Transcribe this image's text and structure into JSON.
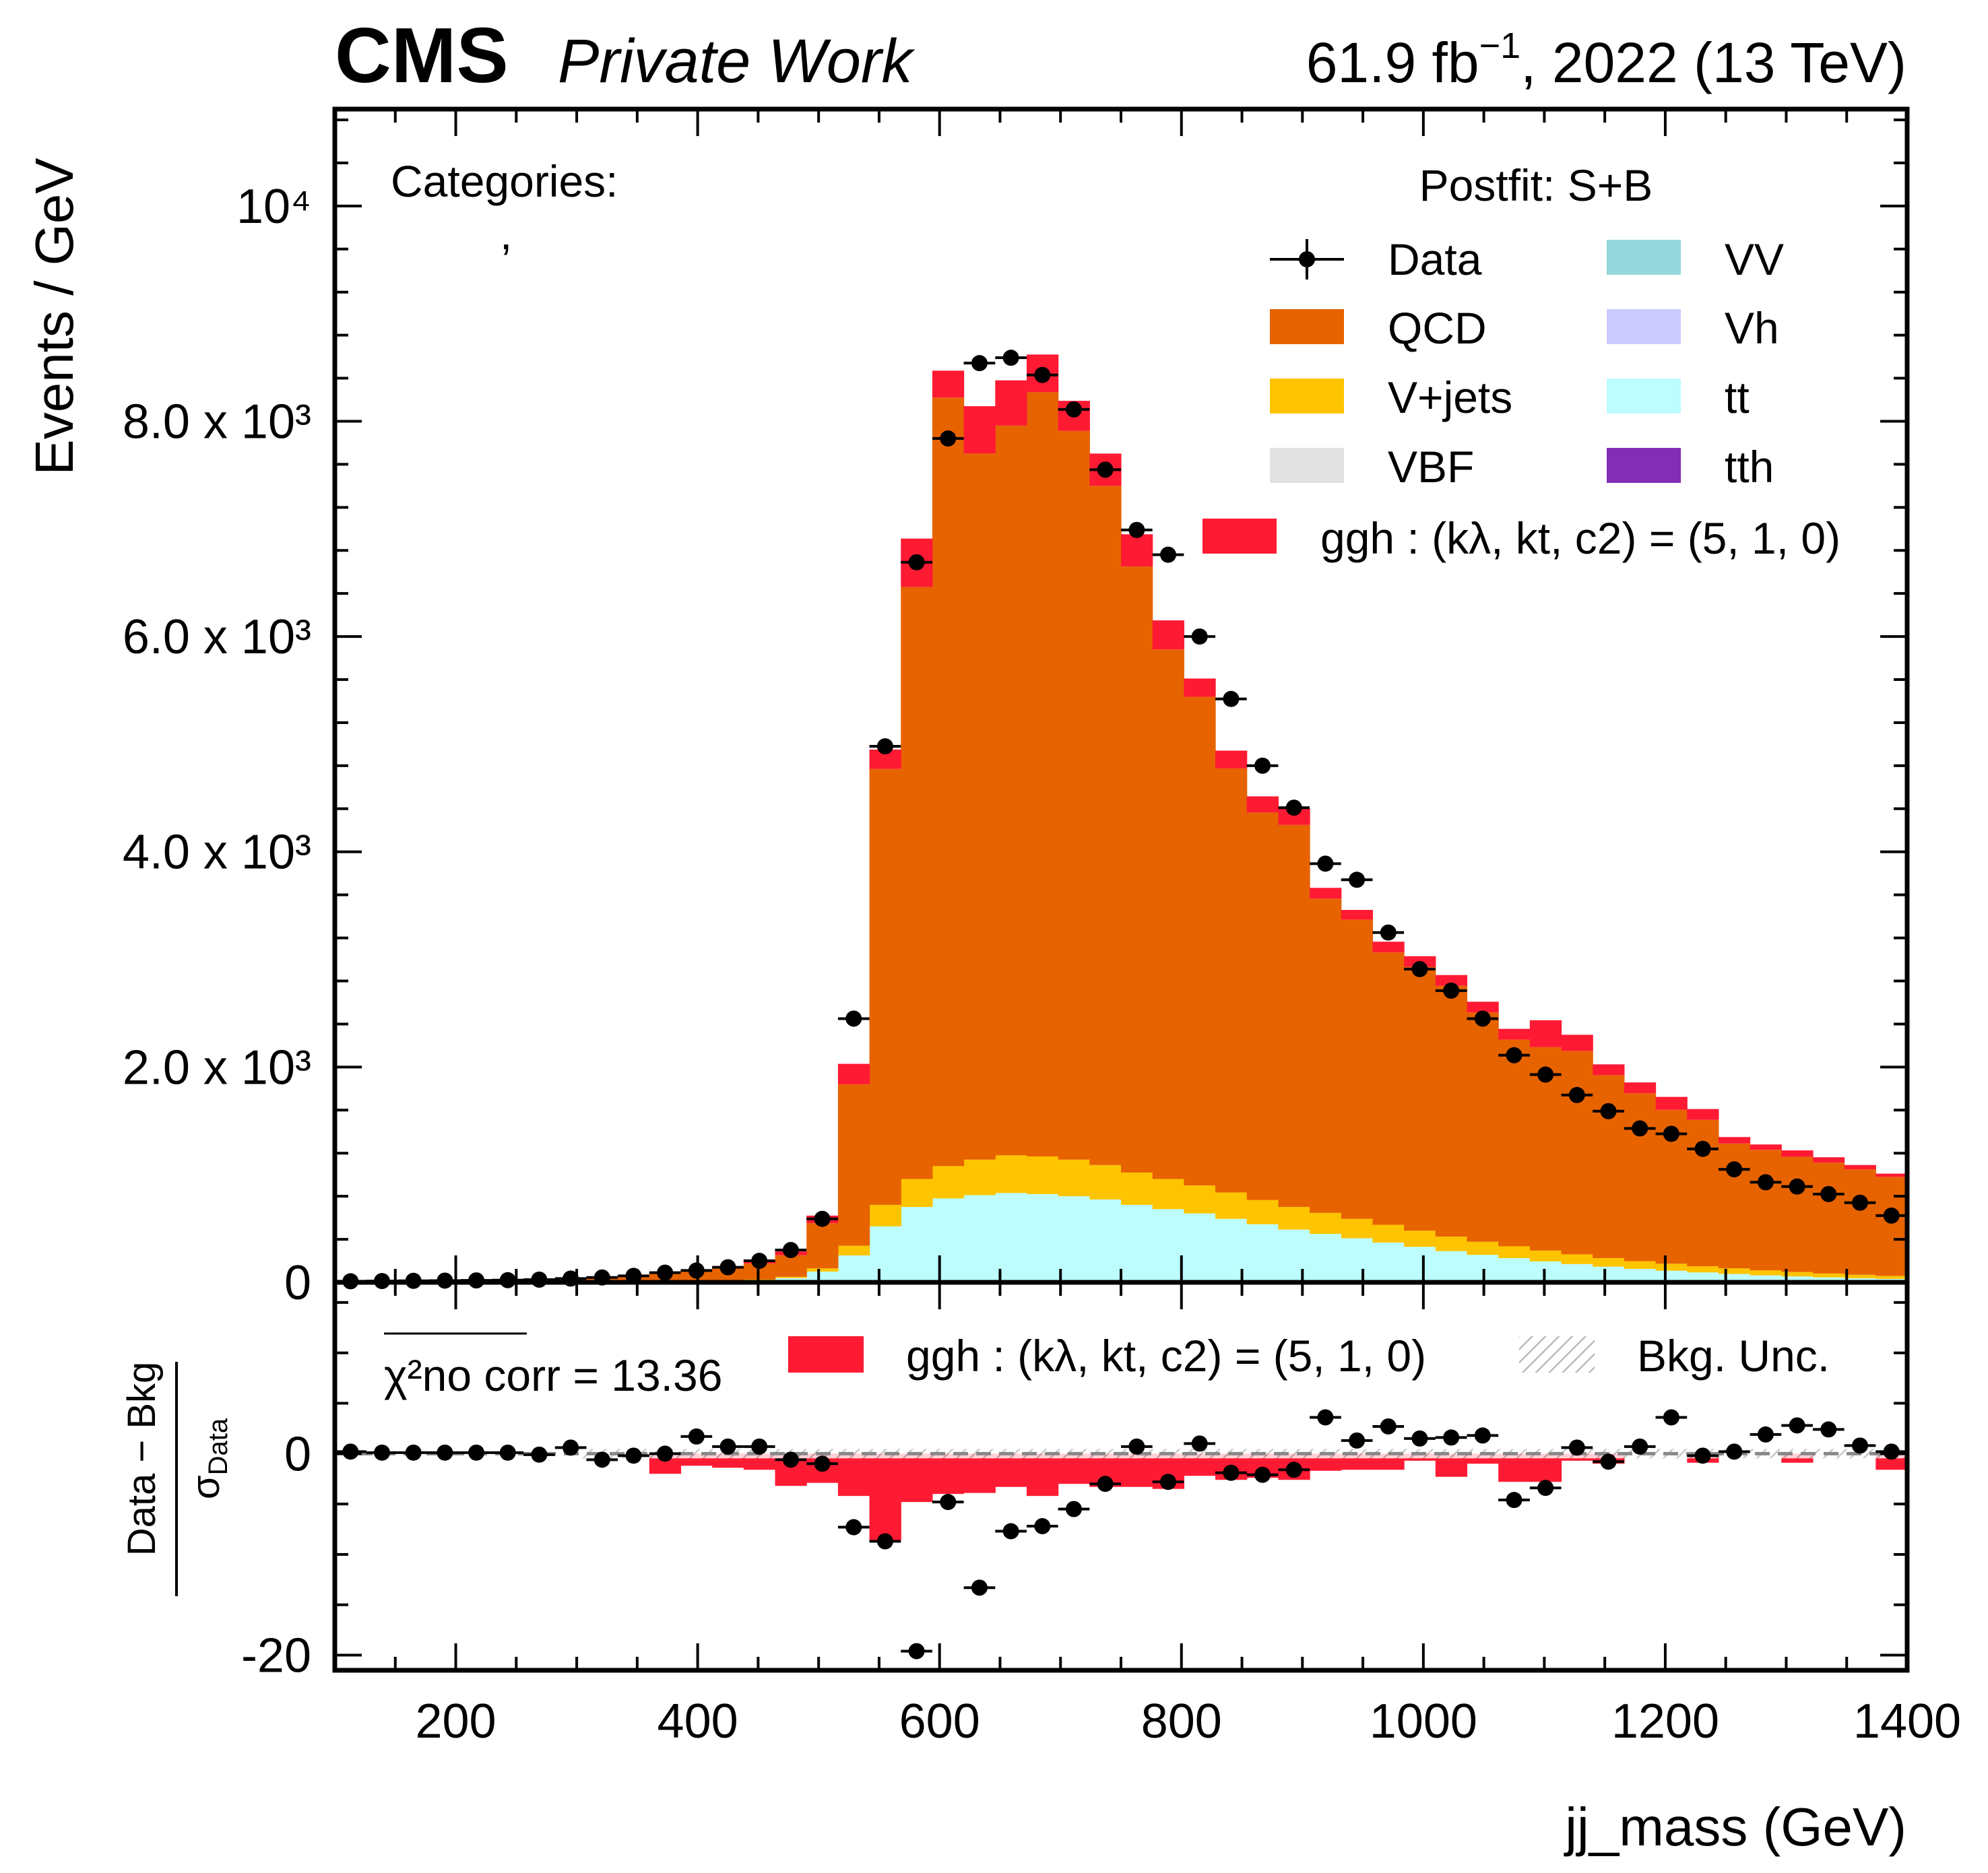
{
  "header": {
    "experiment": "CMS",
    "status": "Private Work",
    "lumi_prefix": "61.9 fb",
    "lumi_exp": "−1",
    "lumi_suffix": ", 2022 (13 TeV)"
  },
  "annotations": {
    "categories_label": "Categories:",
    "categories_value": ",",
    "fit_label": "Postfit: S+B"
  },
  "legend": {
    "data": "Data",
    "signal": "ggh : (kλ, kt, c2) = (5, 1, 0)",
    "bkg_unc": "Bkg. Unc.",
    "chi2_label": "χ²no corr = 13.36"
  },
  "colors": {
    "QCD": "#e76300",
    "V+jets": "#ffc400",
    "VBF": "#e2e2e2",
    "VV": "#94d8dc",
    "Vh": "#cccbff",
    "tt": "#bdfdfd",
    "tth": "#832db6",
    "signal": "#ff1a33"
  },
  "chart_data": [
    {
      "type": "bar",
      "stacked": true,
      "ylabel": "Events / GeV",
      "xlim": [
        100,
        1400
      ],
      "ylim": [
        0,
        10900
      ],
      "yticks": [
        "0",
        "2.0 x 10³",
        "4.0 x 10³",
        "6.0 x 10³",
        "8.0 x 10³",
        "10⁴"
      ],
      "bin_edges": [
        100,
        126,
        152,
        178,
        204,
        230,
        256,
        282,
        308,
        334,
        360,
        386,
        412,
        438,
        464,
        490,
        516,
        542,
        568,
        594,
        620,
        646,
        672,
        698,
        724,
        750,
        776,
        802,
        828,
        854,
        880,
        906,
        932,
        958,
        984,
        1010,
        1036,
        1062,
        1088,
        1114,
        1140,
        1166,
        1192,
        1218,
        1244,
        1270,
        1296,
        1322,
        1348,
        1374,
        1400
      ],
      "series": [
        {
          "name": "tt",
          "values": [
            0,
            0,
            0,
            0,
            0,
            0,
            0,
            0,
            0,
            0,
            2,
            5,
            10,
            18,
            40,
            100,
            250,
            520,
            700,
            780,
            810,
            830,
            820,
            800,
            770,
            720,
            680,
            640,
            590,
            540,
            490,
            450,
            410,
            370,
            330,
            290,
            255,
            225,
            195,
            170,
            145,
            125,
            108,
            92,
            78,
            65,
            55,
            46,
            38,
            32
          ]
        },
        {
          "name": "V+jets",
          "values": [
            0,
            0,
            0,
            0,
            0,
            0,
            0,
            0,
            0,
            0,
            2,
            3,
            5,
            8,
            12,
            30,
            90,
            200,
            260,
            300,
            330,
            350,
            350,
            340,
            320,
            300,
            280,
            260,
            245,
            225,
            210,
            195,
            180,
            165,
            150,
            135,
            122,
            110,
            100,
            90,
            80,
            72,
            65,
            58,
            52,
            46,
            41,
            36,
            32,
            28
          ]
        },
        {
          "name": "QCD",
          "values": [
            10,
            12,
            14,
            16,
            18,
            20,
            25,
            30,
            40,
            60,
            80,
            100,
            120,
            150,
            200,
            420,
            1500,
            4050,
            5500,
            7140,
            6560,
            6780,
            7100,
            6770,
            6310,
            5630,
            4920,
            4540,
            3940,
            3600,
            3550,
            2920,
            2780,
            2530,
            2450,
            2330,
            2130,
            1920,
            1890,
            1890,
            1700,
            1560,
            1430,
            1360,
            1160,
            1120,
            1070,
            1030,
            980,
            920
          ]
        },
        {
          "name": "ggh : (kλ, kt, c2) = (5, 1, 0)",
          "values": [
            0,
            0,
            0,
            0,
            0,
            0,
            0,
            0,
            0,
            0,
            5,
            10,
            15,
            25,
            35,
            70,
            190,
            180,
            450,
            250,
            440,
            420,
            350,
            280,
            300,
            300,
            270,
            170,
            165,
            150,
            150,
            100,
            90,
            100,
            100,
            100,
            100,
            100,
            250,
            150,
            100,
            100,
            120,
            100,
            60,
            50,
            60,
            50,
            40,
            30
          ]
        }
      ],
      "data_points": [
        {
          "x": 113,
          "y": 10
        },
        {
          "x": 139,
          "y": 12
        },
        {
          "x": 165,
          "y": 14
        },
        {
          "x": 191,
          "y": 16
        },
        {
          "x": 217,
          "y": 18
        },
        {
          "x": 243,
          "y": 20
        },
        {
          "x": 269,
          "y": 25
        },
        {
          "x": 295,
          "y": 35
        },
        {
          "x": 321,
          "y": 45
        },
        {
          "x": 347,
          "y": 60
        },
        {
          "x": 373,
          "y": 90
        },
        {
          "x": 399,
          "y": 110
        },
        {
          "x": 425,
          "y": 140
        },
        {
          "x": 451,
          "y": 200
        },
        {
          "x": 477,
          "y": 300
        },
        {
          "x": 503,
          "y": 590
        },
        {
          "x": 529,
          "y": 2450
        },
        {
          "x": 555,
          "y": 4980
        },
        {
          "x": 581,
          "y": 6690
        },
        {
          "x": 607,
          "y": 7840
        },
        {
          "x": 633,
          "y": 8540
        },
        {
          "x": 659,
          "y": 8590
        },
        {
          "x": 685,
          "y": 8430
        },
        {
          "x": 711,
          "y": 8110
        },
        {
          "x": 737,
          "y": 7550
        },
        {
          "x": 763,
          "y": 6990
        },
        {
          "x": 789,
          "y": 6760
        },
        {
          "x": 815,
          "y": 6000
        },
        {
          "x": 841,
          "y": 5420
        },
        {
          "x": 867,
          "y": 4800
        },
        {
          "x": 893,
          "y": 4410
        },
        {
          "x": 919,
          "y": 3890
        },
        {
          "x": 945,
          "y": 3740
        },
        {
          "x": 971,
          "y": 3250
        },
        {
          "x": 997,
          "y": 2910
        },
        {
          "x": 1023,
          "y": 2710
        },
        {
          "x": 1049,
          "y": 2450
        },
        {
          "x": 1075,
          "y": 2110
        },
        {
          "x": 1101,
          "y": 1930
        },
        {
          "x": 1127,
          "y": 1740
        },
        {
          "x": 1153,
          "y": 1590
        },
        {
          "x": 1179,
          "y": 1430
        },
        {
          "x": 1205,
          "y": 1380
        },
        {
          "x": 1231,
          "y": 1240
        },
        {
          "x": 1257,
          "y": 1050
        },
        {
          "x": 1283,
          "y": 930
        },
        {
          "x": 1309,
          "y": 890
        },
        {
          "x": 1335,
          "y": 820
        },
        {
          "x": 1361,
          "y": 740
        },
        {
          "x": 1387,
          "y": 620
        }
      ],
      "legend_location": "top-right"
    },
    {
      "type": "scatter",
      "ylabel": "Data − Bkg / σData",
      "xlabel": "jj_mass (GeV)",
      "xlim": [
        100,
        1400
      ],
      "ylim": [
        -21.5,
        17
      ],
      "yticks": [
        "-20",
        "0"
      ],
      "xticks": [
        200,
        400,
        600,
        800,
        1000,
        1200,
        1400
      ],
      "pulls": [
        0.2,
        0.1,
        0.1,
        0.1,
        0.1,
        0.1,
        -0.1,
        0.6,
        -0.6,
        -0.2,
        0,
        1.7,
        0.7,
        0.7,
        -0.6,
        -1.0,
        -7.3,
        -8.7,
        -19.6,
        -4.8,
        -13.3,
        -7.7,
        -7.2,
        -5.5,
        -3.0,
        0.7,
        -2.8,
        1.0,
        -1.9,
        -2.1,
        -1.6,
        3.6,
        1.3,
        2.7,
        1.5,
        1.6,
        1.8,
        -4.6,
        -3.4,
        0.6,
        -0.8,
        0.7,
        3.6,
        -0.2,
        0.2,
        1.9,
        2.8,
        2.4,
        0.8,
        0.2
      ],
      "signal_pulls": [
        0,
        0,
        0,
        0,
        0,
        0,
        0,
        0,
        0,
        0,
        -2,
        -1.2,
        -1.4,
        -1.6,
        -3.2,
        -2.9,
        -4.2,
        -8.6,
        -4.8,
        -4.0,
        -3.9,
        -3.3,
        -4.2,
        -3.0,
        -3.3,
        -3.3,
        -3.5,
        -2.2,
        -2.6,
        -2.4,
        -2.6,
        -1.7,
        -1.6,
        -1.6,
        -0.7,
        -2.3,
        -1.0,
        -2.8,
        -2.8,
        -0.7,
        -1.0,
        0,
        0,
        -0.9,
        0,
        0,
        -0.9,
        0,
        0,
        -1.6
      ],
      "legend_location": "top"
    }
  ]
}
